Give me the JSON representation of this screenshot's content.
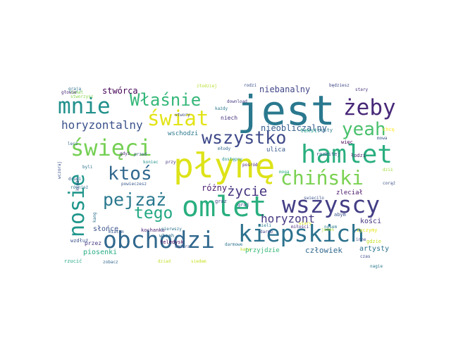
{
  "words": [
    {
      "text": "jest",
      "color": "#2a788e"
    },
    {
      "text": "płynę",
      "color": "#dde318"
    },
    {
      "text": "hamlet",
      "color": "#29af7f"
    },
    {
      "text": "omlet",
      "color": "#29af7f"
    },
    {
      "text": "obchodzi",
      "color": "#31688e"
    },
    {
      "text": "kiepskich",
      "color": "#2c728e"
    },
    {
      "text": "wszyscy",
      "color": "#433e85"
    },
    {
      "text": "święci",
      "color": "#75d054"
    },
    {
      "text": "mnie",
      "color": "#21918c"
    },
    {
      "text": "świat",
      "color": "#e2e418"
    },
    {
      "text": "Właśnie",
      "color": "#35b779"
    },
    {
      "text": "żeby",
      "color": "#482878"
    },
    {
      "text": "chiński",
      "color": "#7ad151"
    },
    {
      "text": "wszystko",
      "color": "#3e4989"
    },
    {
      "text": "nosie",
      "color": "#1f968b"
    },
    {
      "text": "yeah",
      "color": "#4ac16d"
    },
    {
      "text": "ktoś",
      "color": "#31688e"
    },
    {
      "text": "pejzaż",
      "color": "#2a788e"
    },
    {
      "text": "tego",
      "color": "#22a884"
    },
    {
      "text": "życie",
      "color": "#46337e"
    },
    {
      "text": "horyzontalny",
      "color": "#3b528b"
    },
    {
      "text": "horyzont",
      "color": "#453781"
    },
    {
      "text": "człowiek",
      "color": "#31688e"
    },
    {
      "text": "niebanalny",
      "color": "#404688"
    },
    {
      "text": "stwórca",
      "color": "#440154"
    },
    {
      "text": "nieobliczalny",
      "color": "#365c8d"
    },
    {
      "text": "różny",
      "color": "#481a6c"
    },
    {
      "text": "artysty",
      "color": "#2c728e"
    },
    {
      "text": "piosenki",
      "color": "#25ab82"
    },
    {
      "text": "słońce",
      "color": "#3b528b"
    },
    {
      "text": "wschodzi",
      "color": "#2a788e"
    },
    {
      "text": "kości",
      "color": "#46327e"
    },
    {
      "text": "przyjdzie",
      "color": "#35b779"
    },
    {
      "text": "ulica",
      "color": "#38598c"
    },
    {
      "text": "zleciał",
      "color": "#481467"
    },
    {
      "text": "niech",
      "color": "#46327e"
    },
    {
      "text": "tekst",
      "color": "#1fa188"
    },
    {
      "text": "pusty",
      "color": "#2a788e"
    },
    {
      "text": "więc",
      "color": "#440154"
    },
    {
      "text": "graj",
      "color": "#3e4989"
    },
    {
      "text": "przez",
      "color": "#453781"
    },
    {
      "text": "wzdłuż",
      "color": "#3b528b"
    },
    {
      "text": "rzucić",
      "color": "#22a884"
    },
    {
      "text": "kochanku",
      "color": "#482475"
    },
    {
      "text": "whoah",
      "color": "#2d708e"
    },
    {
      "text": "teledysk",
      "color": "#440154"
    },
    {
      "text": "umiera",
      "color": "#3b528b"
    },
    {
      "text": "zobacz",
      "color": "#31688e"
    },
    {
      "text": "kata",
      "color": "#bddf26"
    },
    {
      "text": "darmowe",
      "color": "#2c728e"
    },
    {
      "text": "mieli",
      "color": "#2a788e"
    },
    {
      "text": "darmo",
      "color": "#404688"
    },
    {
      "text": "dostępny",
      "color": "#21918c"
    },
    {
      "text": "pośród",
      "color": "#482878"
    },
    {
      "text": "mogą",
      "color": "#25ab82"
    },
    {
      "text": "zyczymy",
      "color": "#e5e419"
    },
    {
      "text": "gdzie",
      "color": "#c2df23"
    },
    {
      "text": "abym",
      "color": "#3b528b"
    },
    {
      "text": "jeden",
      "color": "#a5db36"
    },
    {
      "text": "nagie",
      "color": "#2a788e"
    },
    {
      "text": "czas",
      "color": "#3e4989"
    },
    {
      "text": "miłości",
      "color": "#472d7b"
    },
    {
      "text": "swiecilo",
      "color": "#3b528b"
    },
    {
      "text": "byli",
      "color": "#2c728e"
    },
    {
      "text": "drugi",
      "color": "#38598c"
    },
    {
      "text": "wczoraj",
      "color": "#3b528b"
    },
    {
      "text": "również",
      "color": "#2c728e"
    },
    {
      "text": "gdyż",
      "color": "#482878"
    },
    {
      "text": "przed",
      "color": "#3b528b"
    },
    {
      "text": "lecz",
      "color": "#31688e"
    },
    {
      "text": "koniec",
      "color": "#21918c"
    },
    {
      "text": "powieczesz",
      "color": "#38598c"
    },
    {
      "text": "utwory",
      "color": "#3e4989"
    },
    {
      "text": "przy",
      "color": "#46337e"
    },
    {
      "text": "młody",
      "color": "#31688e"
    },
    {
      "text": "download",
      "color": "#453781"
    },
    {
      "text": "każdy",
      "color": "#2a788e"
    },
    {
      "text": "rodzi",
      "color": "#3b528b"
    },
    {
      "text": "będziesz",
      "color": "#404688"
    },
    {
      "text": "stary",
      "color": "#46337e"
    },
    {
      "text": "złodziej",
      "color": "#b5de2b"
    },
    {
      "text": "temat",
      "color": "#7ad151"
    },
    {
      "text": "głowie",
      "color": "#482878"
    },
    {
      "text": "grają",
      "color": "#2c728e"
    },
    {
      "text": "łodzi",
      "color": "#481a6c"
    },
    {
      "text": "rozbitej",
      "color": "#3b528b"
    },
    {
      "text": "inne",
      "color": "#3e4989"
    },
    {
      "text": "chcę",
      "color": "#fde725"
    },
    {
      "text": "dziś",
      "color": "#a0da39"
    },
    {
      "text": "corąż",
      "color": "#3b528b"
    },
    {
      "text": "miałem",
      "color": "#38598c"
    },
    {
      "text": "pierwszy",
      "color": "#2c728e"
    },
    {
      "text": "dziad",
      "color": "#bddf26"
    },
    {
      "text": "siedem",
      "color": "#c8e020"
    },
    {
      "text": "stworzysz",
      "color": "#86d549"
    },
    {
      "text": "nosem",
      "color": "#2a788e"
    },
    {
      "text": "wiary",
      "color": "#d8e219"
    },
    {
      "text": "mowa",
      "color": "#3b528b"
    },
    {
      "text": "króż",
      "color": "#3e4989"
    },
    {
      "text": "graz",
      "color": "#404688"
    },
    {
      "text": "kang",
      "color": "#2c728e"
    }
  ]
}
